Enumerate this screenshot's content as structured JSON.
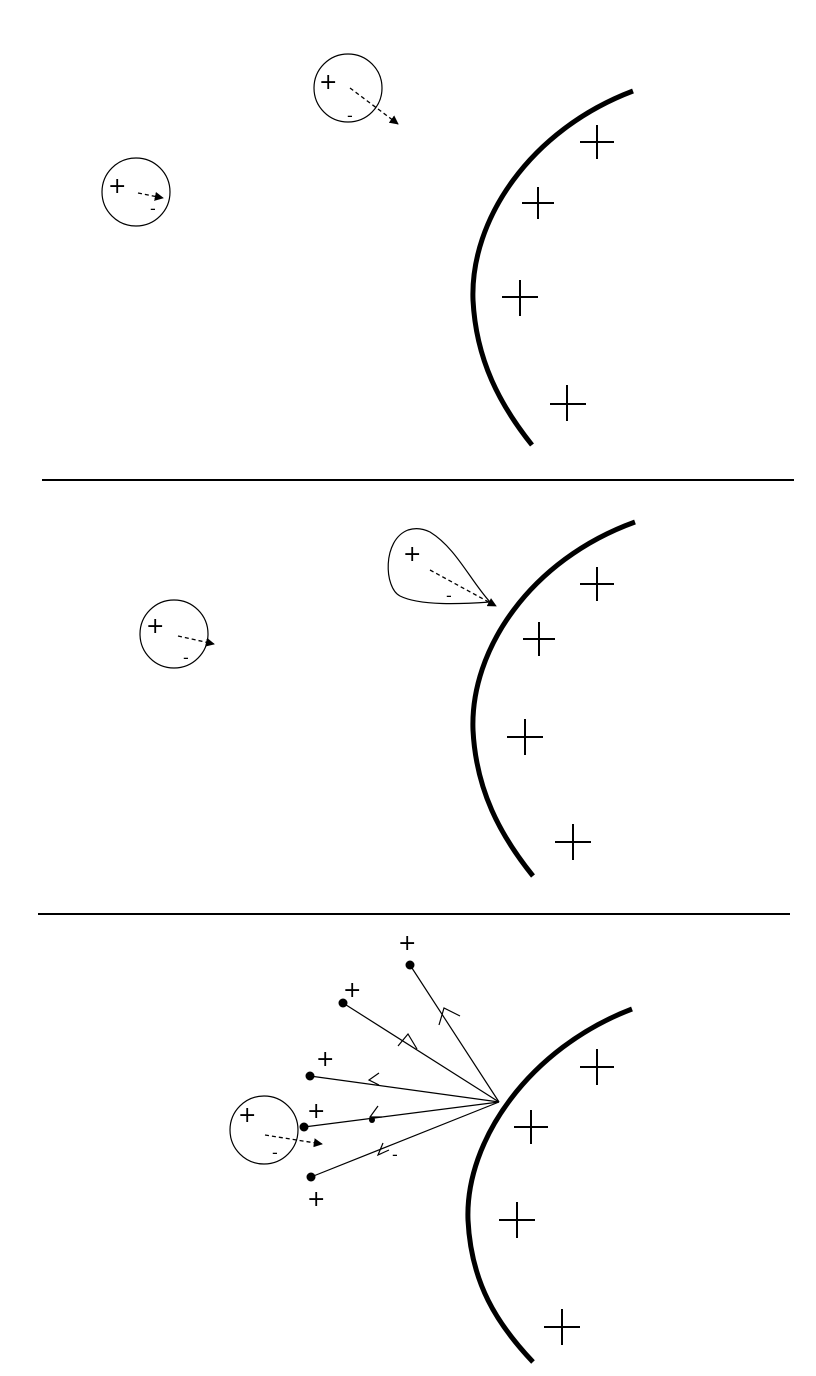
{
  "colors": {
    "ink": "#000000",
    "background": "#ffffff"
  },
  "symbols": {
    "positive": "+",
    "negative": "-"
  },
  "panels": [
    {
      "id": "panel-1",
      "description_hidden": true
    },
    {
      "id": "panel-2",
      "description_hidden": true
    },
    {
      "id": "panel-3",
      "description_hidden": true
    }
  ]
}
